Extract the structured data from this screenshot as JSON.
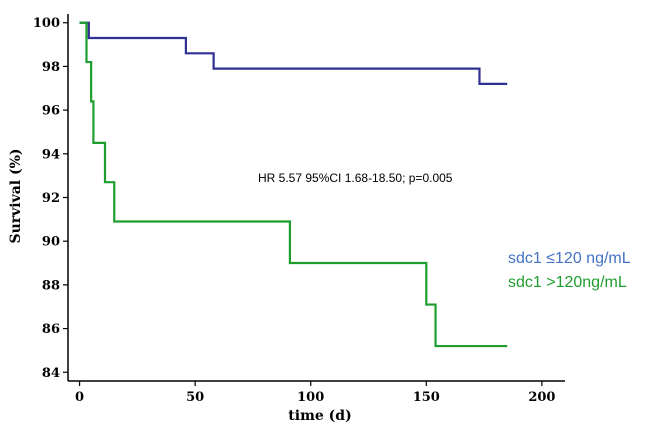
{
  "chart_data": {
    "type": "line",
    "step": true,
    "xlabel": "time (d)",
    "ylabel": "Survival (%)",
    "xlim": [
      -5,
      210
    ],
    "ylim": [
      83.6,
      100.4
    ],
    "xticks": [
      0,
      50,
      100,
      150,
      200
    ],
    "yticks": [
      84,
      86,
      88,
      90,
      92,
      94,
      96,
      98,
      100
    ],
    "grid": false,
    "legend_position": "right",
    "annotation": "HR 5.57 95%CI 1.68-18.50; p=0.005",
    "series": [
      {
        "name": "sdc1 ≤120 ng/mL",
        "color": "#2e3192",
        "legend_color": "#4472c4",
        "x": [
          0,
          4,
          46,
          58,
          173,
          185
        ],
        "y": [
          100,
          99.3,
          98.6,
          97.9,
          97.2,
          97.2
        ]
      },
      {
        "name": "sdc1 >120ng/mL",
        "color": "#1e9e2e",
        "legend_color": "#1e9e2e",
        "x": [
          0,
          3,
          5,
          6,
          11,
          15,
          91,
          150,
          154,
          185
        ],
        "y": [
          100,
          98.2,
          96.4,
          94.5,
          92.7,
          90.9,
          89,
          87.1,
          85.2,
          85.2
        ]
      }
    ]
  }
}
